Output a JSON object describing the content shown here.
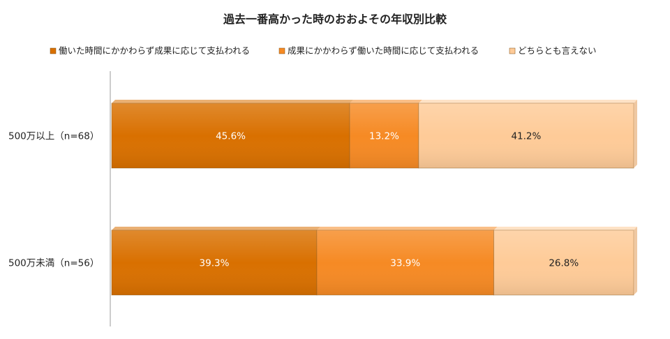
{
  "chart_data": {
    "type": "bar",
    "orientation": "horizontal",
    "stacked": true,
    "percent": true,
    "title": "過去一番高かった時のおおよその年収別比較",
    "categories": [
      "500万以上（n=68）",
      "500万未満（n=56）"
    ],
    "series": [
      {
        "name": "働いた時間にかかわらず成果に応じて支払われる",
        "color": "#d97000",
        "values": [
          45.6,
          39.3
        ],
        "labels": [
          "45.6%",
          "39.3%"
        ]
      },
      {
        "name": "成果にかかわらず働いた時間に応じて支払われる",
        "color": "#f68a24",
        "values": [
          13.2,
          33.9
        ],
        "labels": [
          "13.2%",
          "33.9%"
        ]
      },
      {
        "name": "どちらとも言えない",
        "color": "#fecb98",
        "values": [
          41.2,
          26.8
        ],
        "labels": [
          "41.2%",
          "26.8%"
        ]
      }
    ],
    "xlim": [
      0,
      100
    ],
    "grid": false,
    "legend": "top"
  }
}
